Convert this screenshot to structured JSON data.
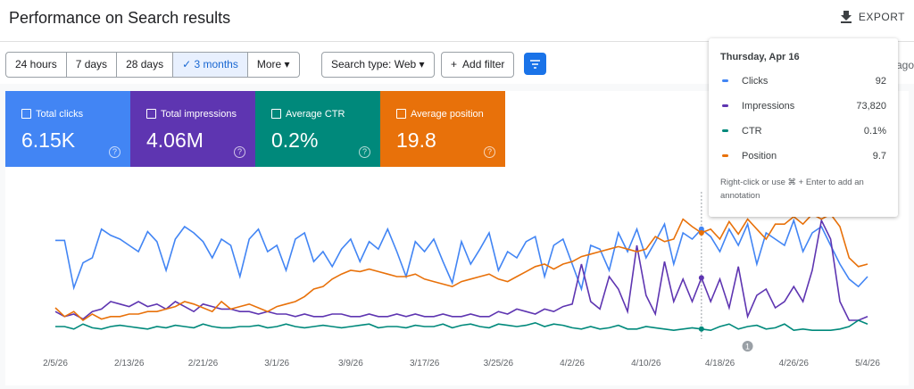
{
  "header": {
    "title": "Performance on Search results",
    "export": "EXPORT"
  },
  "toolbar": {
    "ranges": [
      "24 hours",
      "7 days",
      "28 days",
      "3 months",
      "More"
    ],
    "search_type": "Search type: Web",
    "add_filter": "Add filter",
    "updated": "ago"
  },
  "metrics": [
    {
      "label": "Total clicks",
      "value": "6.15K",
      "color": "#4285f4"
    },
    {
      "label": "Total impressions",
      "value": "4.06M",
      "color": "#5e35b1"
    },
    {
      "label": "Average CTR",
      "value": "0.2%",
      "color": "#00897b"
    },
    {
      "label": "Average position",
      "value": "19.8",
      "color": "#e8710a"
    }
  ],
  "chart_data": {
    "type": "line",
    "categories": [
      "2/5/26",
      null,
      null,
      null,
      null,
      null,
      null,
      null,
      "2/13/26",
      null,
      null,
      null,
      null,
      null,
      null,
      null,
      "2/21/26",
      null,
      null,
      null,
      null,
      null,
      null,
      null,
      "3/1/26",
      null,
      null,
      null,
      null,
      null,
      null,
      null,
      "3/9/26",
      null,
      null,
      null,
      null,
      null,
      null,
      null,
      "3/17/26",
      null,
      null,
      null,
      null,
      null,
      null,
      null,
      "3/25/26",
      null,
      null,
      null,
      null,
      null,
      null,
      null,
      "4/2/26",
      null,
      null,
      null,
      null,
      null,
      null,
      null,
      "4/10/26",
      null,
      null,
      null,
      null,
      null,
      null,
      null,
      "4/18/26",
      null,
      null,
      null,
      null,
      null,
      null,
      null,
      "4/26/26",
      null,
      null,
      null,
      null,
      null,
      null,
      null,
      "5/4/26"
    ],
    "ylim": [
      0,
      100
    ],
    "annotation": "1",
    "series": [
      {
        "name": "Clicks",
        "color": "#4285f4",
        "values": [
          79,
          79,
          41,
          61,
          65,
          88,
          83,
          80,
          75,
          70,
          86,
          78,
          55,
          80,
          90,
          85,
          78,
          65,
          80,
          75,
          50,
          80,
          88,
          70,
          75,
          55,
          80,
          85,
          62,
          70,
          58,
          72,
          80,
          62,
          78,
          72,
          88,
          70,
          50,
          78,
          70,
          80,
          62,
          45,
          78,
          60,
          72,
          85,
          55,
          70,
          65,
          78,
          82,
          50,
          75,
          80,
          60,
          40,
          75,
          72,
          55,
          85,
          70,
          88,
          65,
          78,
          92,
          60,
          85,
          80,
          88,
          82,
          70,
          88,
          75,
          92,
          60,
          85,
          80,
          75,
          95,
          70,
          85,
          90,
          75,
          60,
          48,
          42,
          50
        ]
      },
      {
        "name": "Impressions",
        "color": "#5e35b1",
        "values": [
          22,
          18,
          20,
          16,
          22,
          24,
          30,
          28,
          26,
          30,
          26,
          28,
          24,
          30,
          26,
          22,
          28,
          26,
          24,
          24,
          22,
          22,
          20,
          22,
          20,
          20,
          18,
          20,
          18,
          18,
          20,
          20,
          18,
          18,
          20,
          18,
          18,
          20,
          18,
          20,
          18,
          18,
          20,
          18,
          18,
          20,
          18,
          18,
          22,
          20,
          24,
          22,
          20,
          24,
          22,
          26,
          28,
          60,
          30,
          24,
          50,
          40,
          22,
          75,
          35,
          20,
          62,
          30,
          48,
          30,
          49,
          30,
          48,
          25,
          58,
          18,
          35,
          40,
          25,
          30,
          42,
          30,
          55,
          95,
          80,
          30,
          15,
          15,
          18
        ]
      },
      {
        "name": "CTR",
        "color": "#00897b",
        "values": [
          10,
          10,
          8,
          12,
          9,
          8,
          10,
          11,
          10,
          9,
          8,
          10,
          9,
          11,
          10,
          9,
          12,
          10,
          9,
          9,
          10,
          10,
          11,
          9,
          10,
          12,
          10,
          9,
          10,
          11,
          10,
          9,
          10,
          11,
          12,
          9,
          10,
          10,
          9,
          11,
          10,
          10,
          12,
          9,
          11,
          12,
          10,
          9,
          12,
          11,
          10,
          11,
          13,
          10,
          12,
          11,
          9,
          8,
          10,
          8,
          9,
          11,
          8,
          8,
          10,
          9,
          8,
          7,
          8,
          9,
          8,
          7,
          10,
          12,
          8,
          10,
          11,
          8,
          9,
          12,
          7,
          8,
          7,
          7,
          7,
          8,
          10,
          15,
          12
        ]
      },
      {
        "name": "Position",
        "color": "#e8710a",
        "values": [
          25,
          18,
          22,
          15,
          20,
          16,
          18,
          18,
          20,
          20,
          22,
          22,
          24,
          26,
          30,
          28,
          25,
          22,
          30,
          24,
          26,
          28,
          25,
          22,
          26,
          28,
          30,
          34,
          40,
          42,
          48,
          52,
          55,
          54,
          56,
          54,
          52,
          50,
          50,
          52,
          48,
          46,
          44,
          42,
          46,
          48,
          50,
          52,
          48,
          46,
          50,
          54,
          58,
          60,
          56,
          60,
          62,
          66,
          68,
          70,
          72,
          74,
          72,
          70,
          72,
          82,
          78,
          80,
          96,
          90,
          85,
          88,
          80,
          94,
          84,
          96,
          88,
          80,
          92,
          92,
          98,
          92,
          100,
          96,
          100,
          90,
          65,
          58,
          60
        ]
      }
    ]
  },
  "tooltip": {
    "date": "Thursday, Apr 16",
    "rows": [
      {
        "label": "Clicks",
        "value": "92"
      },
      {
        "label": "Impressions",
        "value": "73,820"
      },
      {
        "label": "CTR",
        "value": "0.1%"
      },
      {
        "label": "Position",
        "value": "9.7"
      }
    ],
    "note": "Right-click or use ⌘ + Enter to add an annotation"
  }
}
